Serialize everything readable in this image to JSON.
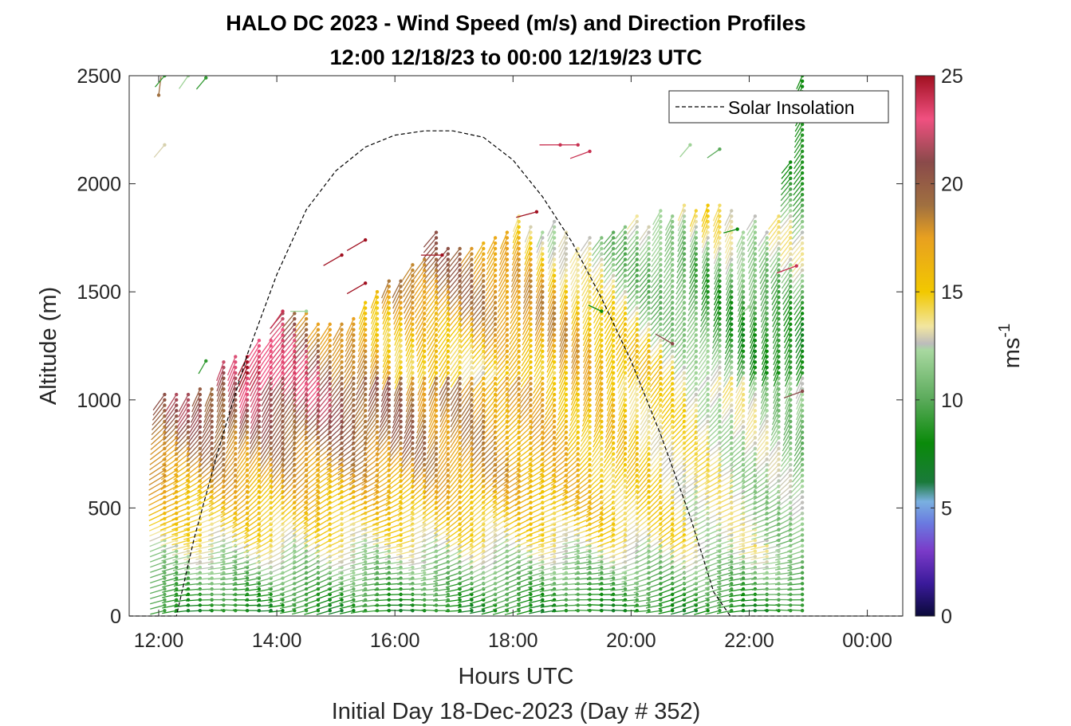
{
  "chart_data": {
    "type": "scatter",
    "title": "HALO DC 2023 - Wind Speed (m/s) and Direction Profiles",
    "subtitle": "12:00 12/18/23 to 00:00 12/19/23  UTC",
    "xlabel": "Hours UTC",
    "xlabel2": "Initial Day 18-Dec-2023 (Day # 352)",
    "ylabel": "Altitude (m)",
    "xlim": [
      11.5,
      24.6
    ],
    "ylim": [
      0,
      2500
    ],
    "xticks": [
      12,
      14,
      16,
      18,
      20,
      22,
      24
    ],
    "xtick_labels": [
      "12:00",
      "14:00",
      "16:00",
      "18:00",
      "20:00",
      "22:00",
      "00:00"
    ],
    "yticks": [
      0,
      500,
      1000,
      1500,
      2000,
      2500
    ],
    "ytick_labels": [
      "0",
      "500",
      "1000",
      "1500",
      "2000",
      "2500"
    ],
    "grid": false,
    "legend": {
      "entries": [
        "Solar Insolation"
      ],
      "placement": "top-right"
    },
    "colorbar": {
      "label": "ms-1",
      "label_base": "ms",
      "label_sup": "-1",
      "range": [
        0,
        25
      ],
      "ticks": [
        0,
        5,
        10,
        15,
        20,
        25
      ],
      "tick_labels": [
        "0",
        "5",
        "10",
        "15",
        "20",
        "25"
      ],
      "stops": [
        {
          "v": 0,
          "color": "#0a0a3a"
        },
        {
          "v": 1.5,
          "color": "#3a1a9a"
        },
        {
          "v": 3,
          "color": "#7a3ac8"
        },
        {
          "v": 4.3,
          "color": "#6a7ae0"
        },
        {
          "v": 5.3,
          "color": "#7ab0e0"
        },
        {
          "v": 6.2,
          "color": "#1a7a3a"
        },
        {
          "v": 8,
          "color": "#0a8a0a"
        },
        {
          "v": 10,
          "color": "#5aaa5a"
        },
        {
          "v": 12.3,
          "color": "#a8d8a0"
        },
        {
          "v": 12.6,
          "color": "#bcbcbc"
        },
        {
          "v": 13.4,
          "color": "#f2e6a0"
        },
        {
          "v": 15,
          "color": "#f2c800"
        },
        {
          "v": 17.5,
          "color": "#e8a020"
        },
        {
          "v": 19,
          "color": "#a07040"
        },
        {
          "v": 21,
          "color": "#8a4a4a"
        },
        {
          "v": 23,
          "color": "#f05080"
        },
        {
          "v": 25,
          "color": "#a01020"
        }
      ]
    },
    "solar_insolation": {
      "label": "Solar Insolation",
      "x": [
        11.5,
        12.3,
        12.6,
        13.0,
        13.5,
        14.0,
        14.5,
        15.0,
        15.5,
        16.0,
        16.5,
        16.98,
        17.5,
        18.0,
        18.5,
        19.0,
        19.5,
        20.0,
        20.5,
        21.0,
        21.4,
        21.68,
        22.0,
        24.6
      ],
      "y": [
        0,
        0,
        360,
        760,
        1210,
        1580,
        1880,
        2060,
        2170,
        2225,
        2245,
        2245,
        2215,
        2110,
        1940,
        1730,
        1470,
        1180,
        840,
        460,
        110,
        0,
        0,
        0
      ]
    },
    "wind_barbs": {
      "time_first": 12.1,
      "time_last": 22.9,
      "time_step": 0.2,
      "alt_first": 25,
      "alt_step": 25,
      "profile_top": [
        1040,
        1040,
        1040,
        1050,
        1060,
        1190,
        1200,
        1210,
        1280,
        1290,
        1400,
        1400,
        1410,
        1370,
        1360,
        1370,
        1380,
        1460,
        1510,
        1560,
        1560,
        1640,
        1660,
        1780,
        1700,
        1700,
        1700,
        1740,
        1760,
        1790,
        1870,
        1810,
        1790,
        1830,
        1780,
        1720,
        1750,
        1760,
        1790,
        1800,
        1860,
        1810,
        1880,
        1870,
        1900,
        1890,
        1910,
        1920,
        1880,
        1790,
        1870,
        1790,
        1870,
        2100,
        2500
      ],
      "sparse_points": [
        [
          12.0,
          2410,
          19,
          7
        ],
        [
          12.1,
          2180,
          13,
          220
        ],
        [
          12.1,
          2500,
          9,
          220
        ],
        [
          12.5,
          2500,
          12,
          215
        ],
        [
          12.8,
          2490,
          9,
          220
        ],
        [
          12.8,
          1180,
          9,
          210
        ],
        [
          14.1,
          1410,
          24,
          215
        ],
        [
          14.5,
          1410,
          12,
          270
        ],
        [
          15.1,
          1670,
          25,
          240
        ],
        [
          15.5,
          1740,
          25,
          240
        ],
        [
          15.5,
          1540,
          25,
          240
        ],
        [
          16.8,
          1670,
          25,
          270
        ],
        [
          18.4,
          1870,
          25,
          255
        ],
        [
          18.8,
          2180,
          24,
          270
        ],
        [
          19.1,
          2180,
          24,
          270
        ],
        [
          19.3,
          2150,
          24,
          250
        ],
        [
          19.5,
          1410,
          8,
          295
        ],
        [
          20.7,
          1260,
          21,
          300
        ],
        [
          21.0,
          2180,
          12,
          220
        ],
        [
          21.5,
          2160,
          10,
          235
        ],
        [
          21.8,
          1790,
          8,
          255
        ],
        [
          22.0,
          1430,
          12,
          230
        ],
        [
          22.8,
          1620,
          24,
          250
        ],
        [
          22.9,
          1040,
          21,
          250
        ]
      ]
    }
  }
}
